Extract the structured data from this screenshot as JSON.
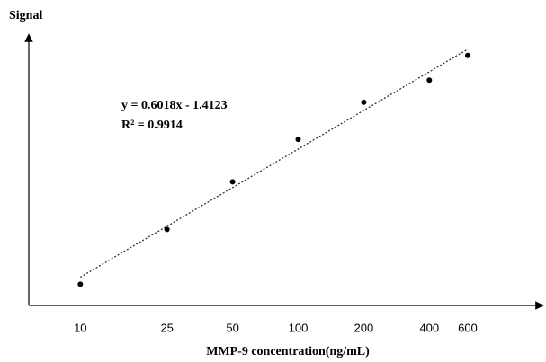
{
  "chart_data": {
    "type": "scatter",
    "title": "Signal",
    "x_label": "MMP-9 concentration(ng/mL)",
    "x_scale": "log",
    "series": [
      {
        "x": [
          10,
          25,
          50,
          100,
          200,
          400,
          600
        ],
        "values": [
          0.24,
          0.86,
          1.4,
          1.88,
          2.3,
          2.55,
          2.83
        ],
        "color": "#000000"
      }
    ],
    "trendline": {
      "x": [
        10,
        600
      ],
      "values": [
        0.32,
        2.9
      ],
      "color": "#333333"
    },
    "annotations": [
      "y = 0.6018x - 1.4123",
      "R² = 0.9914"
    ],
    "xlim": [
      5.8,
      1260
    ],
    "xticks": [
      10,
      25,
      50,
      100,
      200,
      400,
      600
    ],
    "ylim": [
      0,
      3
    ],
    "grid": false
  }
}
